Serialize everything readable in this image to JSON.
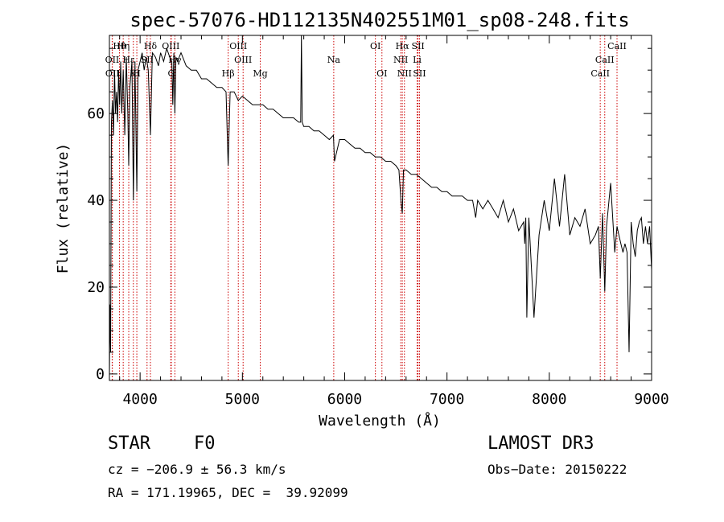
{
  "chart_data": {
    "type": "line",
    "title": "spec-57076-HD112135N402551M01_sp08-248.fits",
    "xlabel": "Wavelength (Å)",
    "ylabel": "Flux (relative)",
    "xlim": [
      3700,
      9000
    ],
    "ylim": [
      -1.5,
      78
    ],
    "xticks": [
      4000,
      5000,
      6000,
      7000,
      8000,
      9000
    ],
    "yticks": [
      0,
      20,
      40,
      60
    ],
    "grid": false,
    "series": [
      {
        "name": "spectrum",
        "color": "#000000",
        "x": [
          3700,
          3705,
          3712,
          3720,
          3730,
          3740,
          3750,
          3760,
          3770,
          3780,
          3790,
          3800,
          3810,
          3820,
          3835,
          3850,
          3865,
          3880,
          3889,
          3900,
          3920,
          3934,
          3950,
          3968,
          3980,
          4000,
          4020,
          4040,
          4060,
          4080,
          4101,
          4120,
          4150,
          4180,
          4200,
          4230,
          4260,
          4290,
          4310,
          4320,
          4330,
          4340,
          4350,
          4365,
          4400,
          4450,
          4500,
          4550,
          4600,
          4650,
          4700,
          4750,
          4800,
          4840,
          4861,
          4880,
          4920,
          4960,
          5000,
          5050,
          5100,
          5167,
          5200,
          5250,
          5300,
          5350,
          5400,
          5450,
          5500,
          5550,
          5570,
          5577,
          5585,
          5600,
          5650,
          5700,
          5750,
          5800,
          5850,
          5890,
          5900,
          5950,
          6000,
          6050,
          6100,
          6150,
          6200,
          6250,
          6300,
          6350,
          6400,
          6450,
          6500,
          6530,
          6550,
          6563,
          6575,
          6600,
          6650,
          6700,
          6750,
          6800,
          6850,
          6900,
          6950,
          7000,
          7050,
          7100,
          7150,
          7200,
          7250,
          7280,
          7300,
          7350,
          7400,
          7450,
          7500,
          7550,
          7600,
          7650,
          7700,
          7750,
          7760,
          7770,
          7780,
          7800,
          7850,
          7900,
          7950,
          8000,
          8050,
          8100,
          8150,
          8200,
          8250,
          8300,
          8350,
          8400,
          8450,
          8480,
          8498,
          8520,
          8542,
          8560,
          8600,
          8640,
          8662,
          8680,
          8700,
          8720,
          8740,
          8760,
          8780,
          8800,
          8820,
          8840,
          8860,
          8880,
          8900,
          8920,
          8940,
          8960,
          8980,
          9000
        ],
        "values": [
          -1,
          16,
          5,
          58,
          63,
          55,
          70,
          60,
          65,
          58,
          70,
          62,
          72,
          60,
          70,
          55,
          73,
          60,
          48,
          66,
          72,
          40,
          72,
          42,
          70,
          72,
          74,
          70,
          73,
          70,
          55,
          74,
          73,
          71,
          74,
          72,
          75,
          73,
          72,
          62,
          74,
          60,
          73,
          72,
          74,
          71,
          70,
          70,
          68,
          68,
          67,
          66,
          66,
          65,
          48,
          65,
          65,
          63,
          64,
          63,
          62,
          62,
          62,
          61,
          61,
          60,
          59,
          59,
          59,
          58,
          58,
          78,
          58,
          57,
          57,
          56,
          56,
          55,
          54,
          55,
          49,
          54,
          54,
          53,
          52,
          52,
          51,
          51,
          50,
          50,
          49,
          49,
          48,
          47,
          40,
          37,
          47,
          47,
          46,
          46,
          45,
          44,
          43,
          43,
          42,
          42,
          41,
          41,
          41,
          40,
          40,
          36,
          40,
          38,
          40,
          38,
          36,
          40,
          35,
          38,
          33,
          35,
          30,
          36,
          13,
          36,
          13,
          32,
          40,
          33,
          45,
          34,
          46,
          32,
          36,
          34,
          38,
          30,
          32,
          34,
          22,
          37,
          19,
          34,
          44,
          28,
          34,
          32,
          30,
          28,
          30,
          28,
          5,
          35,
          30,
          27,
          33,
          35,
          36,
          30,
          34,
          30,
          34,
          24
        ]
      }
    ],
    "spectral_lines": [
      {
        "label": "Hθ",
        "x": 3798,
        "row": 0,
        "color": "#cc0000"
      },
      {
        "label": "Hη",
        "x": 3835,
        "row": 0,
        "color": "#cc0000"
      },
      {
        "label": "Hδ",
        "x": 4101,
        "row": 0,
        "color": "#cc0000"
      },
      {
        "label": "OIII",
        "x": 4300,
        "row": 0,
        "color": "#cc0000"
      },
      {
        "label": "OIII",
        "x": 4960,
        "row": 0,
        "color": "#cc0000"
      },
      {
        "label": "OI",
        "x": 6300,
        "row": 0,
        "color": "#cc0000"
      },
      {
        "label": "Hα",
        "x": 6563,
        "row": 0,
        "color": "#cc0000"
      },
      {
        "label": "SII",
        "x": 6717,
        "row": 0,
        "color": "#cc0000"
      },
      {
        "label": "CaII",
        "x": 8662,
        "row": 0,
        "color": "#cc0000"
      },
      {
        "label": "OII",
        "x": 3727,
        "row": 1,
        "color": "#cc0000"
      },
      {
        "label": "Hε",
        "x": 3889,
        "row": 1,
        "color": "#cc0000"
      },
      {
        "label": "SII",
        "x": 4068,
        "row": 1,
        "color": "#cc0000"
      },
      {
        "label": "Hγ",
        "x": 4340,
        "row": 1,
        "color": "#cc0000"
      },
      {
        "label": "OIII",
        "x": 5007,
        "row": 1,
        "color": "#cc0000"
      },
      {
        "label": "Na",
        "x": 5893,
        "row": 1,
        "color": "#cc0000"
      },
      {
        "label": "NII",
        "x": 6548,
        "row": 1,
        "color": "#cc0000"
      },
      {
        "label": "Li",
        "x": 6708,
        "row": 1,
        "color": "#cc0000"
      },
      {
        "label": "CaII",
        "x": 8542,
        "row": 1,
        "color": "#cc0000"
      },
      {
        "label": "OII",
        "x": 3729,
        "row": 2,
        "color": "#cc0000"
      },
      {
        "label": "K",
        "x": 3934,
        "row": 2,
        "color": "#cc0000"
      },
      {
        "label": "H",
        "x": 3968,
        "row": 2,
        "color": "#cc0000"
      },
      {
        "label": "G",
        "x": 4305,
        "row": 2,
        "color": "#cc0000"
      },
      {
        "label": "Hβ",
        "x": 4861,
        "row": 2,
        "color": "#cc0000"
      },
      {
        "label": "Mg",
        "x": 5175,
        "row": 2,
        "color": "#cc0000"
      },
      {
        "label": "OI",
        "x": 6364,
        "row": 2,
        "color": "#cc0000"
      },
      {
        "label": "NII",
        "x": 6584,
        "row": 2,
        "color": "#cc0000"
      },
      {
        "label": "SII",
        "x": 6731,
        "row": 2,
        "color": "#cc0000"
      },
      {
        "label": "CaII",
        "x": 8498,
        "row": 2,
        "color": "#cc0000"
      }
    ]
  },
  "info": {
    "object_class": "STAR",
    "subclass": "F0",
    "survey": "LAMOST DR3",
    "redshift": "cz = −206.9 ± 56.3 km/s",
    "obs_date": "Obs−Date: 20150222",
    "coords": "RA = 171.19965, DEC =  39.92099"
  }
}
